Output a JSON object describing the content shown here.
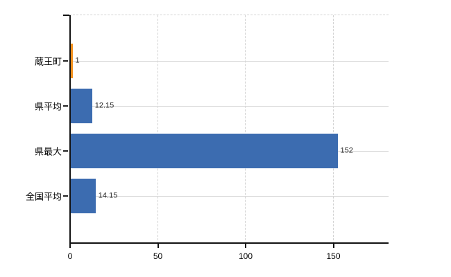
{
  "chart_data": {
    "type": "bar",
    "orientation": "horizontal",
    "title": "",
    "xlabel": "",
    "ylabel": "",
    "categories": [
      "蔵王町",
      "県平均",
      "県最大",
      "全国平均"
    ],
    "values": [
      1,
      12.15,
      152,
      14.15
    ],
    "value_labels": [
      "1",
      "12.15",
      "152",
      "14.15"
    ],
    "x_ticks": [
      0,
      50,
      100,
      150
    ],
    "x_tick_labels": [
      "0",
      "50",
      "100",
      "150"
    ],
    "xlim": [
      0,
      182
    ],
    "legend": "none",
    "grid": {
      "vertical": "dashed",
      "horizontal": "solid, one line per category center",
      "plot_top_border": "dashed"
    },
    "colors": {
      "bar_colors": [
        "#f1911e",
        "#3c6cb0",
        "#3c6cb0",
        "#3c6cb0"
      ],
      "highlight_color": "#f1911e",
      "default_bar_color": "#3c6cb0",
      "gridline": "#d2d2d2",
      "axis": "#111111",
      "category_label": "#000000",
      "value_label": "#262626",
      "background": "#ffffff"
    }
  }
}
